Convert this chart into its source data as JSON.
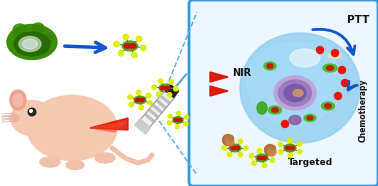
{
  "bg_color": "#ffffff",
  "box_color": "#3399dd",
  "box_bg": "#eef6ff",
  "arrow_blue": "#1155cc",
  "nir_text": "NIR",
  "ptt_text": "PTT",
  "chemo_text": "Chemotherapy",
  "targeted_text": "Targeted",
  "dashed_color": "#55aaee",
  "nano_center": "#cc1100",
  "nano_shell": "#44aa00",
  "nano_dot": "#ddee00",
  "cell_outer": "#88ccee",
  "cell_mid": "#aaddf8",
  "cell_nucleus_outer": "#b89acc",
  "cell_nucleus_inner": "#9977aa",
  "cell_nucleolus": "#cc8855",
  "mouse_body": "#f5c8b0",
  "mouse_ear": "#f0a090",
  "laser_red": "#dd1100",
  "green_blob_outer": "#338800",
  "green_blob_inner": "#226600",
  "green_blob_light": "#aaccaa"
}
